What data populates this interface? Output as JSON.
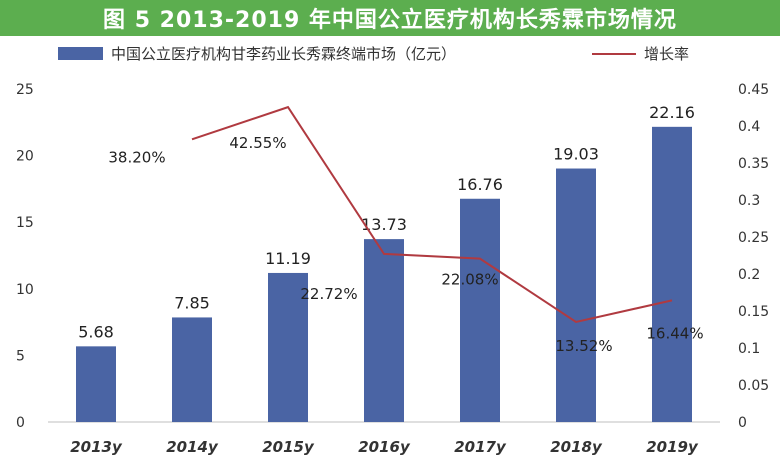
{
  "title": "图 5 2013-2019 年中国公立医疗机构长秀霖市场情况",
  "colors": {
    "title_bg": "#5cae4f",
    "bar": "#4a64a4",
    "line": "#b03a40"
  },
  "chart_data": {
    "type": "bar",
    "categories": [
      "2013y",
      "2014y",
      "2015y",
      "2016y",
      "2017y",
      "2018y",
      "2019y"
    ],
    "series": [
      {
        "name": "中国公立医疗机构甘李药业长秀霖终端市场（亿元）",
        "type": "bar",
        "axis": "left",
        "values": [
          5.68,
          7.85,
          11.19,
          13.73,
          16.76,
          19.03,
          22.16
        ],
        "labels": [
          "5.68",
          "7.85",
          "11.19",
          "13.73",
          "16.76",
          "19.03",
          "22.16"
        ]
      },
      {
        "name": "增长率",
        "type": "line",
        "axis": "right",
        "x": [
          "2014y",
          "2015y",
          "2016y",
          "2017y",
          "2018y",
          "2019y"
        ],
        "values": [
          0.382,
          0.4255,
          0.2272,
          0.2208,
          0.1352,
          0.1644
        ],
        "labels": [
          "38.20%",
          "42.55%",
          "22.72%",
          "22.08%",
          "13.52%",
          "16.44%"
        ]
      }
    ],
    "y_left": {
      "min": 0,
      "max": 25,
      "ticks": [
        "0",
        "5",
        "10",
        "15",
        "20",
        "25"
      ]
    },
    "y_right": {
      "min": 0,
      "max": 0.45,
      "ticks": [
        "0",
        "0.05",
        "0.1",
        "0.15",
        "0.2",
        "0.25",
        "0.3",
        "0.35",
        "0.4",
        "0.45"
      ]
    },
    "legend_position": "top",
    "grid": false
  }
}
